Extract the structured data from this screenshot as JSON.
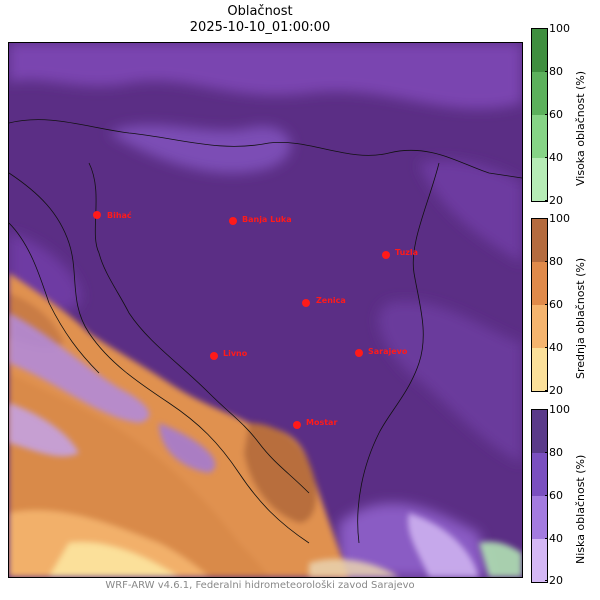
{
  "title": "Oblačnost",
  "timestamp": "2025-10-10_01:00:00",
  "credit": "WRF-ARW v4.6.1, Federalni hidrometeorološki zavod Sarajevo",
  "cities": [
    {
      "name": "Bihać"
    },
    {
      "name": "Banja Luka"
    },
    {
      "name": "Tuzla"
    },
    {
      "name": "Zenica"
    },
    {
      "name": "Livno"
    },
    {
      "name": "Sarajevo"
    },
    {
      "name": "Mostar"
    }
  ],
  "colorbars": {
    "high": {
      "label": "Visoka oblačnost (%)",
      "ticks": [
        "100",
        "80",
        "60",
        "40",
        "20"
      ],
      "colors": [
        "#3f8f3f",
        "#5cb15c",
        "#86d486",
        "#b6ecb6"
      ]
    },
    "mid": {
      "label": "Srednja oblačnost (%)",
      "ticks": [
        "100",
        "80",
        "60",
        "40",
        "20"
      ],
      "colors": [
        "#b56b3e",
        "#e08a4a",
        "#f5b46e",
        "#fbe09a"
      ]
    },
    "low": {
      "label": "Niska oblačnost (%)",
      "ticks": [
        "100",
        "80",
        "60",
        "40",
        "20"
      ],
      "colors": [
        "#5a3a8a",
        "#7a4fc0",
        "#a37be0",
        "#d4b8f5"
      ]
    }
  }
}
